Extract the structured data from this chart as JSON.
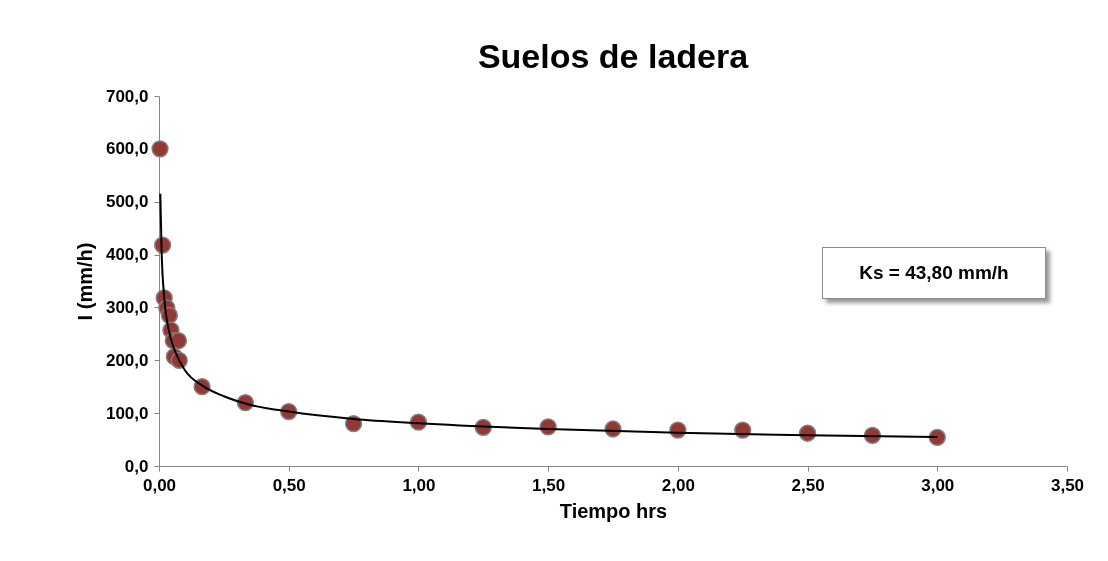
{
  "chart_data": {
    "type": "scatter",
    "title": "Suelos de ladera",
    "xlabel": "Tiempo hrs",
    "ylabel": "I (mm/h)",
    "annotations": [
      "Ks = 43,80 mm/h"
    ],
    "xlim": [
      0,
      3.5
    ],
    "ylim": [
      0,
      700
    ],
    "xticks": [
      {
        "value": 0,
        "label": "0,00"
      },
      {
        "value": 0.5,
        "label": "0,50"
      },
      {
        "value": 1,
        "label": "1,00"
      },
      {
        "value": 1.5,
        "label": "1,50"
      },
      {
        "value": 2,
        "label": "2,00"
      },
      {
        "value": 2.5,
        "label": "2,50"
      },
      {
        "value": 3,
        "label": "3,00"
      },
      {
        "value": 3.5,
        "label": "3,50"
      }
    ],
    "yticks": [
      {
        "value": 0,
        "label": "0,0"
      },
      {
        "value": 100,
        "label": "100,0"
      },
      {
        "value": 200,
        "label": "200,0"
      },
      {
        "value": 300,
        "label": "300,0"
      },
      {
        "value": 400,
        "label": "400,0"
      },
      {
        "value": 500,
        "label": "500,0"
      },
      {
        "value": 600,
        "label": "600,0"
      },
      {
        "value": 700,
        "label": "700,0"
      }
    ],
    "grid": false,
    "marker": "circle",
    "series": [
      {
        "color": "#953735",
        "x": [
          0.004,
          0.014,
          0.02,
          0.03,
          0.04,
          0.046,
          0.055,
          0.059,
          0.075,
          0.078,
          0.166,
          0.333,
          0.5,
          0.75,
          1,
          1.25,
          1.5,
          1.75,
          2,
          2.25,
          2.5,
          2.75,
          3
        ],
        "values": [
          600,
          418,
          318,
          299,
          285,
          257,
          237,
          207,
          237,
          200,
          150,
          120,
          103,
          80,
          83,
          73,
          74,
          70,
          68,
          68,
          62,
          58,
          54
        ]
      },
      {
        "type": "line",
        "color": "#000000",
        "marker": "none",
        "x": [
          0.005,
          0.01,
          0.02,
          0.04,
          0.07,
          0.1,
          0.17,
          0.25,
          0.35,
          0.5,
          0.75,
          1,
          1.5,
          2,
          2.5,
          3
        ],
        "values": [
          515,
          407,
          320,
          252,
          208,
          181,
          151,
          132,
          116,
          103,
          89,
          81,
          70,
          63,
          58,
          55
        ]
      }
    ]
  }
}
